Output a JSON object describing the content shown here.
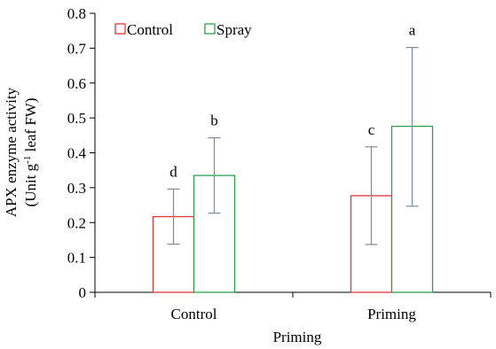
{
  "chart_data": {
    "type": "bar",
    "categories": [
      "Control",
      "Priming"
    ],
    "series": [
      {
        "name": "Control",
        "values": [
          0.217,
          0.277
        ],
        "error_low": [
          0.138,
          0.137
        ],
        "error_high": [
          0.296,
          0.417
        ],
        "letters": [
          "d",
          "c"
        ],
        "color": "#e2373b"
      },
      {
        "name": "Spray",
        "values": [
          0.335,
          0.476
        ],
        "error_low": [
          0.227,
          0.247
        ],
        "error_high": [
          0.443,
          0.702
        ],
        "letters": [
          "b",
          "a"
        ],
        "color": "#2e9e4f"
      }
    ],
    "xlabel": "Priming",
    "ylabel_line1": "APX enzyme activity",
    "ylabel_line2_pre": "(Unit g",
    "ylabel_line2_sup": "-1",
    "ylabel_line2_post": " leaf FW)",
    "ylim": [
      0,
      0.8
    ],
    "yticks": [
      "0",
      "0.1",
      "0.2",
      "0.3",
      "0.4",
      "0.5",
      "0.6",
      "0.7",
      "0.8"
    ],
    "grid": false,
    "legend_position": "top-left",
    "error_bar_color": "#7f8a99"
  }
}
